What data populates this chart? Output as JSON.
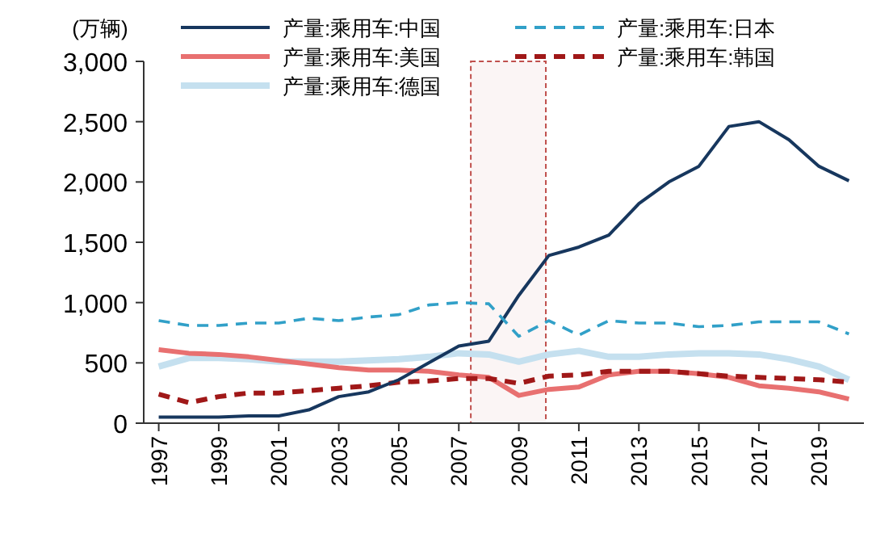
{
  "chart_data": {
    "type": "line",
    "ylabel": "(万辆)",
    "legend": "top",
    "x": [
      1997,
      1998,
      1999,
      2000,
      2001,
      2002,
      2003,
      2004,
      2005,
      2006,
      2007,
      2008,
      2009,
      2010,
      2011,
      2012,
      2013,
      2014,
      2015,
      2016,
      2017,
      2018,
      2019,
      2020
    ],
    "xlim": [
      1996.5,
      2020.5
    ],
    "xticks": [
      1997,
      1999,
      2001,
      2003,
      2005,
      2007,
      2009,
      2011,
      2013,
      2015,
      2017,
      2019
    ],
    "ylim": [
      0,
      3000
    ],
    "yticks": [
      0,
      500,
      {
        "value": 1000,
        "label": "1,000"
      },
      {
        "value": 1500,
        "label": "1,500"
      },
      {
        "value": 2000,
        "label": "2,000"
      },
      {
        "value": 2500,
        "label": "2,500"
      },
      {
        "value": 3000,
        "label": "3,000"
      }
    ],
    "series": [
      {
        "name": "产量:乘用车:中国",
        "color": "#17375e",
        "line_style": "solid",
        "values": [
          50,
          50,
          50,
          60,
          60,
          110,
          220,
          260,
          360,
          500,
          640,
          680,
          1060,
          1390,
          1460,
          1560,
          1820,
          2000,
          2130,
          2460,
          2500,
          2350,
          2130,
          2010
        ]
      },
      {
        "name": "产量:乘用车:日本",
        "color": "#31a0c8",
        "line_style": "dashed",
        "values": [
          850,
          810,
          810,
          830,
          830,
          870,
          850,
          880,
          900,
          980,
          1000,
          990,
          720,
          850,
          730,
          850,
          830,
          830,
          800,
          810,
          840,
          840,
          840,
          740
        ]
      },
      {
        "name": "产量:乘用车:美国",
        "color": "#e87070",
        "line_style": "solid",
        "values": [
          610,
          580,
          570,
          550,
          520,
          490,
          460,
          440,
          440,
          430,
          400,
          380,
          230,
          280,
          300,
          400,
          430,
          430,
          410,
          380,
          310,
          290,
          260,
          200
        ]
      },
      {
        "name": "产量:乘用车:韩国",
        "color": "#a01818",
        "line_style": "dashed",
        "values": [
          240,
          170,
          220,
          250,
          250,
          270,
          290,
          310,
          340,
          350,
          370,
          370,
          330,
          390,
          400,
          430,
          430,
          430,
          410,
          390,
          380,
          370,
          360,
          340
        ]
      },
      {
        "name": "产量:乘用车:德国",
        "color": "#c5e0ef",
        "line_style": "solid",
        "values": [
          470,
          540,
          540,
          530,
          510,
          510,
          510,
          520,
          530,
          550,
          580,
          570,
          510,
          570,
          600,
          550,
          550,
          570,
          580,
          580,
          570,
          530,
          470,
          360
        ]
      }
    ],
    "bands": [
      {
        "axis": "x",
        "from": 2007.4,
        "to": 2009.9,
        "color": "#c0504d"
      }
    ]
  }
}
